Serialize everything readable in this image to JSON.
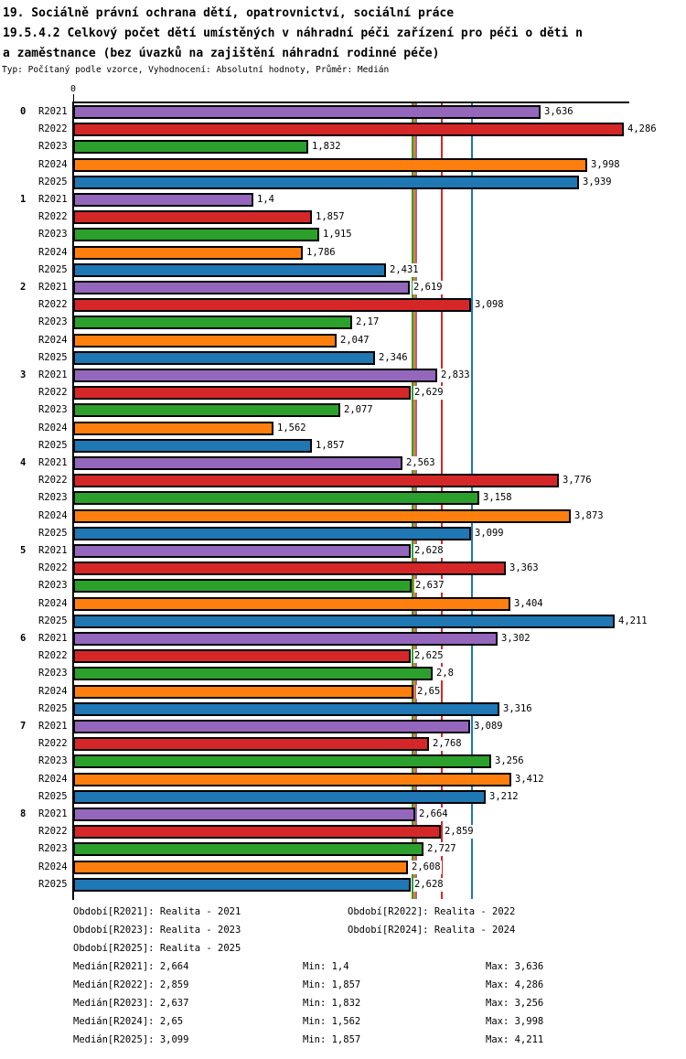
{
  "header": {
    "title_line1": "19. Sociálně právní ochrana dětí, opatrovnictví, sociální práce",
    "title_line2": "19.5.4.2 Celkový počet dětí umístěných v náhradní péči zařízení pro péči o děti n",
    "title_line3": "a zaměstnance (bez úvazků na zajištění náhradní rodinné péče)",
    "subtitle": "Typ: Počítaný podle vzorce, Vyhodnocení: Absolutní hodnoty, Průměr: Medián"
  },
  "chart_data": {
    "type": "bar",
    "orientation": "horizontal",
    "title": "",
    "xlabel": "",
    "ylabel": "",
    "xlim": [
      0,
      4.5
    ],
    "grid": false,
    "axis_zero_label": "0",
    "categories": [
      "0",
      "1",
      "2",
      "3",
      "4",
      "5",
      "6",
      "7",
      "8"
    ],
    "series": [
      {
        "name": "R2021",
        "color": "#9467bd",
        "values": [
          3.636,
          1.4,
          2.619,
          2.833,
          2.563,
          2.628,
          3.302,
          3.089,
          2.664
        ],
        "labels": [
          "3,636",
          "1,4",
          "2,619",
          "2,833",
          "2,563",
          "2,628",
          "3,302",
          "3,089",
          "2,664"
        ]
      },
      {
        "name": "R2022",
        "color": "#d62728",
        "values": [
          4.286,
          1.857,
          3.098,
          2.629,
          3.776,
          3.363,
          2.625,
          2.768,
          2.859
        ],
        "labels": [
          "4,286",
          "1,857",
          "3,098",
          "2,629",
          "3,776",
          "3,363",
          "2,625",
          "2,768",
          "2,859"
        ]
      },
      {
        "name": "R2023",
        "color": "#2ca02c",
        "values": [
          1.832,
          1.915,
          2.17,
          2.077,
          3.158,
          2.637,
          2.8,
          3.256,
          2.727
        ],
        "labels": [
          "1,832",
          "1,915",
          "2,17",
          "2,077",
          "3,158",
          "2,637",
          "2,8",
          "3,256",
          "2,727"
        ]
      },
      {
        "name": "R2024",
        "color": "#ff7f0e",
        "values": [
          3.998,
          1.786,
          2.047,
          1.562,
          3.873,
          3.404,
          2.65,
          3.412,
          2.608
        ],
        "labels": [
          "3,998",
          "1,786",
          "2,047",
          "1,562",
          "3,873",
          "3,404",
          "2,65",
          "3,412",
          "2,608"
        ]
      },
      {
        "name": "R2025",
        "color": "#1f77b4",
        "values": [
          3.939,
          2.431,
          2.346,
          1.857,
          3.099,
          4.211,
          3.316,
          3.212,
          2.628
        ],
        "labels": [
          "3,939",
          "2,431",
          "2,346",
          "1,857",
          "3,099",
          "4,211",
          "3,316",
          "3,212",
          "2,628"
        ]
      }
    ],
    "median_lines": [
      {
        "series": "R2021",
        "value": 2.664,
        "color": "#9467bd"
      },
      {
        "series": "R2022",
        "value": 2.859,
        "color": "#d62728"
      },
      {
        "series": "R2023",
        "value": 2.637,
        "color": "#2ca02c"
      },
      {
        "series": "R2024",
        "value": 2.65,
        "color": "#ff7f0e"
      },
      {
        "series": "R2025",
        "value": 3.099,
        "color": "#1f77b4"
      }
    ]
  },
  "legend": {
    "items": [
      {
        "label": "Období[R2021]: Realita - 2021"
      },
      {
        "label": "Období[R2022]: Realita - 2022"
      },
      {
        "label": "Období[R2023]: Realita - 2023"
      },
      {
        "label": "Období[R2024]: Realita - 2024"
      },
      {
        "label": "Období[R2025]: Realita - 2025"
      }
    ]
  },
  "stats": {
    "rows": [
      {
        "median": "Medián[R2021]: 2,664",
        "min": "Min: 1,4",
        "max": "Max: 3,636"
      },
      {
        "median": "Medián[R2022]: 2,859",
        "min": "Min: 1,857",
        "max": "Max: 4,286"
      },
      {
        "median": "Medián[R2023]: 2,637",
        "min": "Min: 1,832",
        "max": "Max: 3,256"
      },
      {
        "median": "Medián[R2024]: 2,65",
        "min": "Min: 1,562",
        "max": "Max: 3,998"
      },
      {
        "median": "Medián[R2025]: 3,099",
        "min": "Min: 1,857",
        "max": "Max: 4,211"
      }
    ]
  }
}
